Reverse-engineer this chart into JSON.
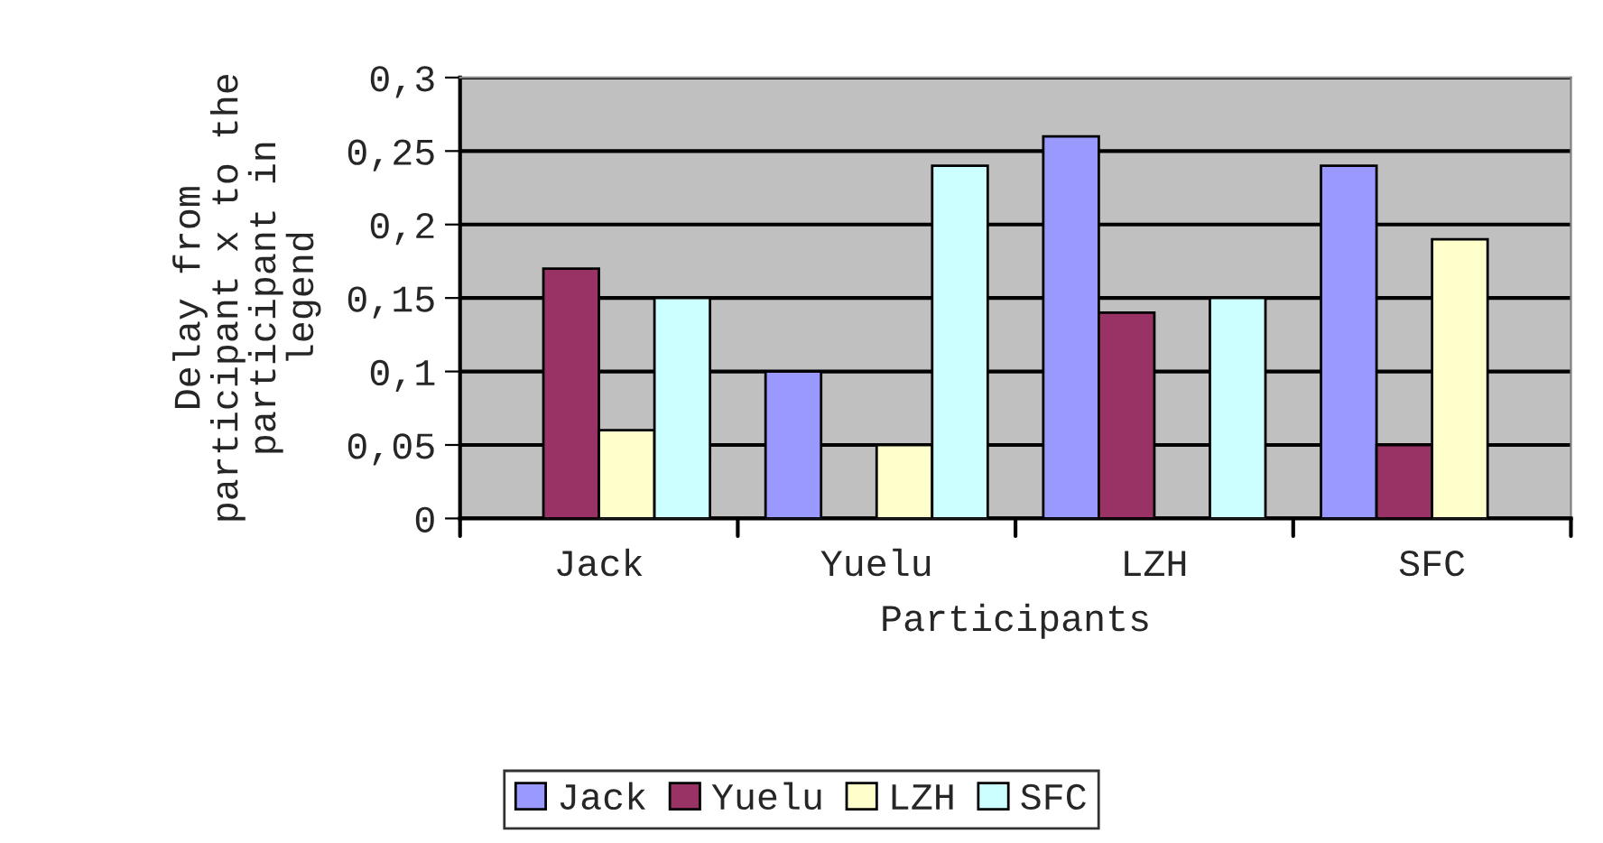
{
  "chart_data": {
    "type": "bar",
    "categories": [
      "Jack",
      "Yuelu",
      "LZH",
      "SFC"
    ],
    "xlabel": "Participants",
    "ylabel": "Delay from\nparticipant x to the\nparticipant in\nlegend",
    "series": [
      {
        "name": "Jack",
        "color": "#9999ff",
        "values": [
          null,
          0.1,
          0.26,
          0.24
        ]
      },
      {
        "name": "Yuelu",
        "color": "#993366",
        "values": [
          0.17,
          null,
          0.14,
          0.05
        ]
      },
      {
        "name": "LZH",
        "color": "#ffffcc",
        "values": [
          0.06,
          0.05,
          null,
          0.19
        ]
      },
      {
        "name": "SFC",
        "color": "#ccffff",
        "values": [
          0.15,
          0.24,
          0.15,
          null
        ]
      }
    ],
    "ylim": [
      0,
      0.3
    ],
    "yticks": [
      {
        "value": 0,
        "label": "0"
      },
      {
        "value": 0.05,
        "label": "0,05"
      },
      {
        "value": 0.1,
        "label": "0,1"
      },
      {
        "value": 0.15,
        "label": "0,15"
      },
      {
        "value": 0.2,
        "label": "0,2"
      },
      {
        "value": 0.25,
        "label": "0,25"
      },
      {
        "value": 0.3,
        "label": "0,3"
      }
    ],
    "grid": "y",
    "legend": "bottom"
  }
}
